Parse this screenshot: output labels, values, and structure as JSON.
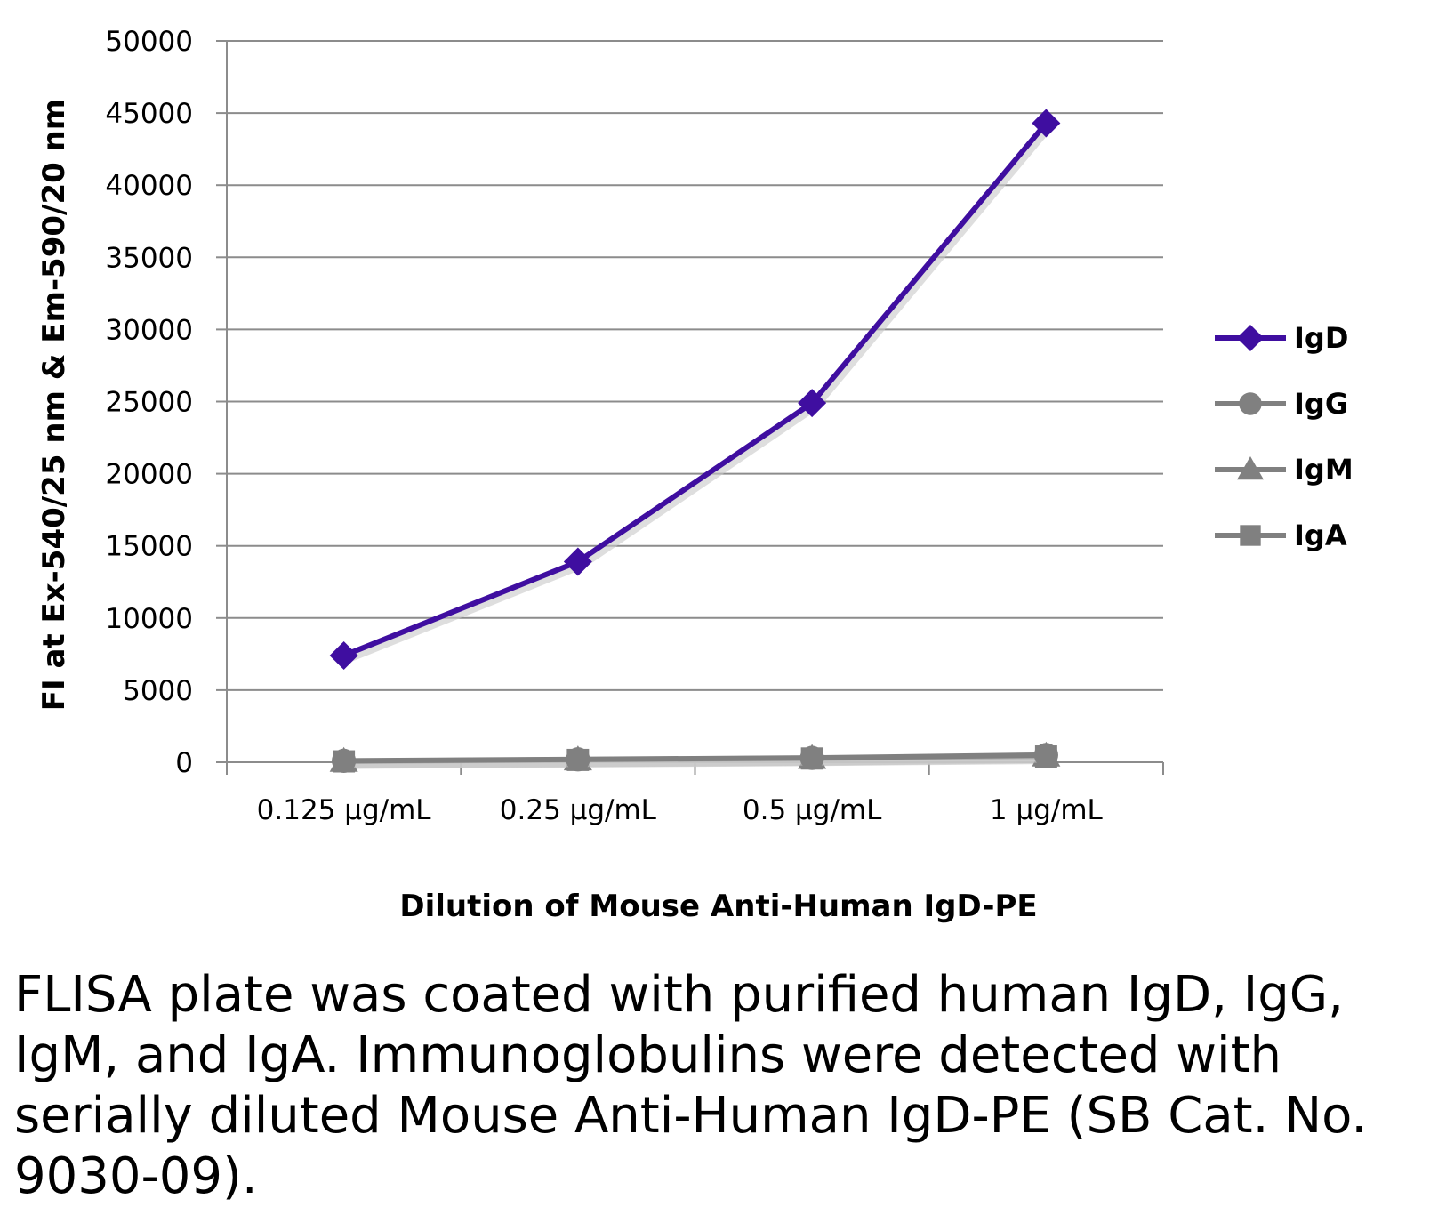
{
  "chart_data": {
    "type": "line",
    "categories": [
      "0.125 µg/mL",
      "0.25 µg/mL",
      "0.5 µg/mL",
      "1 µg/mL"
    ],
    "series": [
      {
        "name": "IgD",
        "values": [
          7400,
          13900,
          24900,
          44300
        ],
        "color": "#3f0ea0",
        "marker": "diamond"
      },
      {
        "name": "IgG",
        "values": [
          100,
          200,
          300,
          500
        ],
        "color": "#808080",
        "marker": "circle"
      },
      {
        "name": "IgM",
        "values": [
          80,
          180,
          280,
          450
        ],
        "color": "#808080",
        "marker": "triangle"
      },
      {
        "name": "IgA",
        "values": [
          60,
          160,
          260,
          400
        ],
        "color": "#808080",
        "marker": "square"
      }
    ],
    "ylim": [
      0,
      50000
    ],
    "yticks": [
      "0",
      "5000",
      "10000",
      "15000",
      "20000",
      "25000",
      "30000",
      "35000",
      "40000",
      "45000",
      "50000"
    ],
    "xlabel": "Dilution of Mouse Anti-Human IgD-PE",
    "ylabel": "FI at Ex-540/25 nm & Em-590/20 nm",
    "grid": true,
    "legend": "right"
  },
  "caption": "FLISA plate was coated with purified human IgD, IgG, IgM, and IgA.  Immunoglobulins were detected with serially diluted Mouse Anti-Human IgD-PE (SB Cat. No. 9030-09)."
}
